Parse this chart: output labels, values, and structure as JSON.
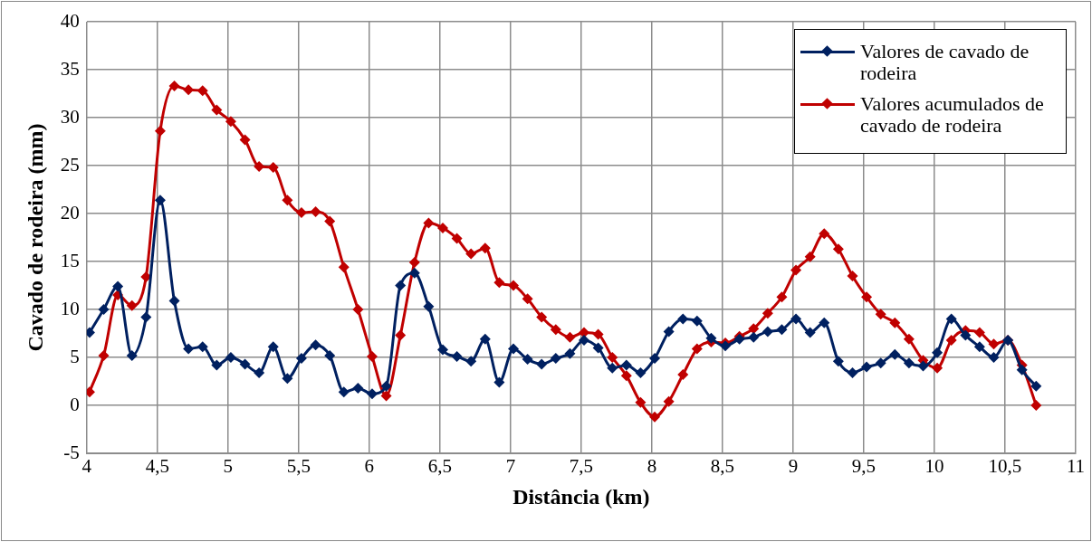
{
  "chart_data": {
    "type": "line",
    "xlabel": "Distância (km)",
    "ylabel": "Cavado de rodeira (mm)",
    "x": [
      4.02,
      4.12,
      4.22,
      4.32,
      4.42,
      4.52,
      4.62,
      4.72,
      4.82,
      4.92,
      5.02,
      5.12,
      5.22,
      5.32,
      5.42,
      5.52,
      5.62,
      5.72,
      5.82,
      5.92,
      6.02,
      6.12,
      6.22,
      6.32,
      6.42,
      6.52,
      6.62,
      6.72,
      6.82,
      6.92,
      7.02,
      7.12,
      7.22,
      7.32,
      7.42,
      7.52,
      7.62,
      7.72,
      7.82,
      7.92,
      8.02,
      8.12,
      8.22,
      8.32,
      8.42,
      8.52,
      8.62,
      8.72,
      8.82,
      8.92,
      9.02,
      9.12,
      9.22,
      9.32,
      9.42,
      9.52,
      9.62,
      9.72,
      9.82,
      9.92,
      10.02,
      10.12,
      10.22,
      10.32,
      10.42,
      10.52,
      10.62,
      10.72
    ],
    "series": [
      {
        "name": "Valores de cavado de rodeira",
        "color": "#002060",
        "values": [
          7.6,
          10,
          12.4,
          5.2,
          9.2,
          21.4,
          10.9,
          5.9,
          6.1,
          4.2,
          5.0,
          4.3,
          3.4,
          6.1,
          2.8,
          4.9,
          6.3,
          5.2,
          1.4,
          1.8,
          1.2,
          2.0,
          12.5,
          13.8,
          10.3,
          5.8,
          5.1,
          4.6,
          6.9,
          2.4,
          5.9,
          4.8,
          4.3,
          4.9,
          5.4,
          6.8,
          6.0,
          3.9,
          4.2,
          3.4,
          4.9,
          7.7,
          9.0,
          8.8,
          7.0,
          6.2,
          6.9,
          7.1,
          7.7,
          7.9,
          9.0,
          7.6,
          8.6,
          4.6,
          3.4,
          4.0,
          4.4,
          5.3,
          4.4,
          4.1,
          5.5,
          9.0,
          7.3,
          6.1,
          5.0,
          6.8,
          3.7,
          2.0
        ]
      },
      {
        "name": "Valores acumulados de cavado de rodeira",
        "color": "#c00000",
        "values": [
          1.4,
          5.2,
          11.5,
          10.4,
          13.4,
          28.6,
          33.3,
          32.9,
          32.8,
          30.8,
          29.6,
          27.7,
          24.9,
          24.8,
          21.4,
          20.1,
          20.2,
          19.2,
          14.4,
          10.0,
          5.1,
          1.0,
          7.3,
          14.9,
          19.0,
          18.5,
          17.4,
          15.8,
          16.4,
          12.8,
          12.5,
          11.1,
          9.2,
          7.9,
          7.1,
          7.6,
          7.4,
          5.0,
          3.1,
          0.3,
          -1.2,
          0.4,
          3.2,
          5.9,
          6.6,
          6.5,
          7.2,
          8.0,
          9.6,
          11.3,
          14.1,
          15.5,
          17.9,
          16.3,
          13.5,
          11.3,
          9.5,
          8.6,
          6.9,
          4.7,
          3.9,
          6.8,
          7.8,
          7.6,
          6.4,
          6.8,
          4.2,
          0.0
        ]
      }
    ],
    "xlim": [
      4,
      11
    ],
    "xticks": [
      4,
      {
        "value": 4.5,
        "label": "4,5"
      },
      5,
      {
        "value": 5.5,
        "label": "5,5"
      },
      6,
      {
        "value": 6.5,
        "label": "6,5"
      },
      7,
      {
        "value": 7.5,
        "label": "7,5"
      },
      8,
      {
        "value": 8.5,
        "label": "8,5"
      },
      9,
      {
        "value": 9.5,
        "label": "9,5"
      },
      10,
      {
        "value": 10.5,
        "label": "10,5"
      },
      11
    ],
    "ylim": [
      -5,
      40
    ],
    "yticks": [
      -5,
      0,
      5,
      10,
      15,
      20,
      25,
      30,
      35,
      40
    ],
    "grid": true,
    "legend": "top right",
    "marker": "diamond",
    "line_style": "solid"
  }
}
